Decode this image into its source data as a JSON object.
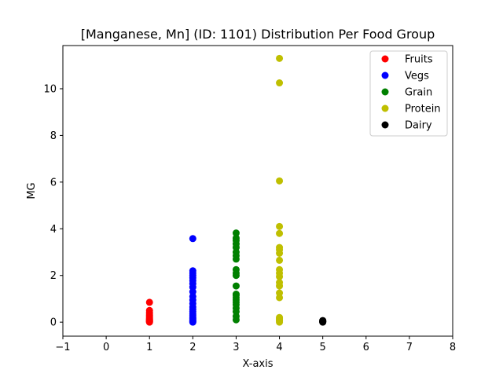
{
  "chart_data": {
    "type": "scatter",
    "title": "[Manganese, Mn] (ID: 1101) Distribution Per Food Group",
    "xlabel": "X-axis",
    "ylabel": "MG",
    "xlim": [
      -1,
      8
    ],
    "ylim": [
      -0.6,
      11.85
    ],
    "x_ticks": [
      -1,
      0,
      1,
      2,
      3,
      4,
      5,
      6,
      7,
      8
    ],
    "y_ticks": [
      0,
      2,
      4,
      6,
      8,
      10
    ],
    "grid": false,
    "legend_position": "top-right",
    "series": [
      {
        "name": "Fruits",
        "color": "#ff0000",
        "x": 1,
        "y": [
          0.0,
          0.02,
          0.04,
          0.06,
          0.08,
          0.1,
          0.13,
          0.16,
          0.2,
          0.25,
          0.3,
          0.35,
          0.42,
          0.5,
          0.85
        ]
      },
      {
        "name": "Vegs",
        "color": "#0000ff",
        "x": 2,
        "y": [
          0.0,
          0.03,
          0.06,
          0.1,
          0.15,
          0.2,
          0.28,
          0.35,
          0.45,
          0.55,
          0.65,
          0.8,
          0.95,
          1.1,
          1.3,
          1.5,
          1.65,
          1.78,
          1.9,
          2.0,
          2.1,
          2.2,
          3.58
        ]
      },
      {
        "name": "Grain",
        "color": "#008000",
        "x": 3,
        "y": [
          0.1,
          0.25,
          0.45,
          0.6,
          0.75,
          0.85,
          0.95,
          1.05,
          1.15,
          1.2,
          1.55,
          2.0,
          2.1,
          2.25,
          2.7,
          2.85,
          3.0,
          3.2,
          3.35,
          3.5,
          3.6,
          3.82
        ]
      },
      {
        "name": "Protein",
        "color": "#bfbf00",
        "x": 4,
        "y": [
          0.0,
          0.05,
          0.1,
          0.15,
          0.2,
          1.05,
          1.25,
          1.55,
          1.7,
          1.95,
          2.1,
          2.25,
          2.65,
          2.95,
          3.1,
          3.2,
          3.8,
          4.1,
          6.05,
          10.25,
          11.3
        ]
      },
      {
        "name": "Dairy",
        "color": "#000000",
        "x": 5,
        "y": [
          0.0,
          0.01,
          0.02,
          0.03,
          0.05,
          0.07
        ]
      }
    ]
  }
}
